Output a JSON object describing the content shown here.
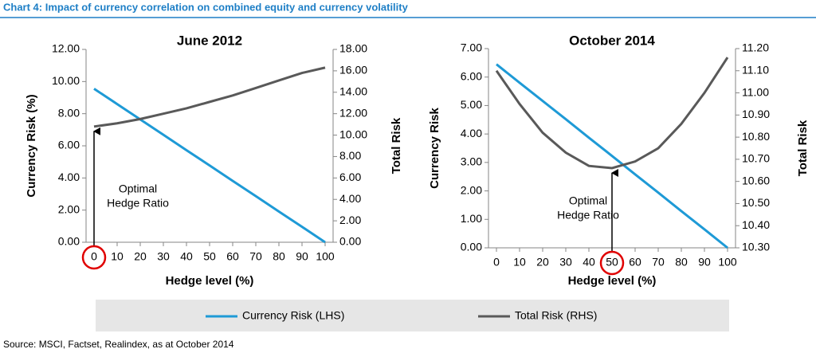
{
  "title": "Chart 4: Impact of currency correlation on combined equity and currency volatility",
  "source": "Source: MSCI, Factset, Realindex, as at October 2014",
  "chart_data": [
    {
      "type": "line",
      "title": "June 2012",
      "x_label": "Hedge level (%)",
      "y_label": "Currency Risk (%)",
      "y2_label": "Total Risk",
      "x": [
        0,
        10,
        20,
        30,
        40,
        50,
        60,
        70,
        80,
        90,
        100
      ],
      "xticks": [
        0,
        10,
        20,
        30,
        40,
        50,
        60,
        70,
        80,
        90,
        100
      ],
      "series": [
        {
          "name": "Currency Risk (LHS)",
          "color": "#1e9ad6",
          "values": [
            9.55,
            8.6,
            7.64,
            6.69,
            5.73,
            4.78,
            3.82,
            2.87,
            1.91,
            0.96,
            0
          ]
        },
        {
          "name": "Total Risk (RHS)",
          "color": "#595959",
          "axis": "y2",
          "values": [
            10.8,
            11.1,
            11.5,
            12.0,
            12.5,
            13.1,
            13.7,
            14.4,
            15.1,
            15.8,
            16.3
          ]
        }
      ],
      "ylim": [
        0,
        12
      ],
      "yticks": [
        {
          "value": 0,
          "label": "0.00"
        },
        {
          "value": 2,
          "label": "2.00"
        },
        {
          "value": 4,
          "label": "4.00"
        },
        {
          "value": 6,
          "label": "6.00"
        },
        {
          "value": 8,
          "label": "8.00"
        },
        {
          "value": 10,
          "label": "10.00"
        },
        {
          "value": 12,
          "label": "12.00"
        }
      ],
      "y2lim": [
        0,
        18
      ],
      "y2ticks": [
        {
          "value": 0,
          "label": "0.00"
        },
        {
          "value": 2,
          "label": "2.00"
        },
        {
          "value": 4,
          "label": "4.00"
        },
        {
          "value": 6,
          "label": "6.00"
        },
        {
          "value": 8,
          "label": "8.00"
        },
        {
          "value": 10,
          "label": "10.00"
        },
        {
          "value": 12,
          "label": "12.00"
        },
        {
          "value": 14,
          "label": "14.00"
        },
        {
          "value": 16,
          "label": "16.00"
        },
        {
          "value": 18,
          "label": "18.00"
        }
      ],
      "annotation": {
        "text": [
          "Optimal",
          "Hedge Ratio"
        ],
        "x": 0
      }
    },
    {
      "type": "line",
      "title": "October 2014",
      "x_label": "Hedge level (%)",
      "y_label": "Currency Risk",
      "y2_label": "Total Risk",
      "x": [
        0,
        10,
        20,
        30,
        40,
        50,
        60,
        70,
        80,
        90,
        100
      ],
      "xticks": [
        0,
        10,
        20,
        30,
        40,
        50,
        60,
        70,
        80,
        90,
        100
      ],
      "series": [
        {
          "color": "#1e9ad6",
          "values": [
            6.45,
            5.8,
            5.16,
            4.52,
            3.87,
            3.23,
            2.58,
            1.94,
            1.29,
            0.65,
            0
          ]
        },
        {
          "color": "#595959",
          "axis": "y2",
          "values": [
            11.1,
            10.95,
            10.82,
            10.73,
            10.67,
            10.66,
            10.69,
            10.75,
            10.86,
            11.0,
            11.16
          ]
        }
      ],
      "ylim": [
        0,
        7
      ],
      "yticks": [
        {
          "value": 0,
          "label": "0.00"
        },
        {
          "value": 1,
          "label": "1.00"
        },
        {
          "value": 2,
          "label": "2.00"
        },
        {
          "value": 3,
          "label": "3.00"
        },
        {
          "value": 4,
          "label": "4.00"
        },
        {
          "value": 5,
          "label": "5.00"
        },
        {
          "value": 6,
          "label": "6.00"
        },
        {
          "value": 7,
          "label": "7.00"
        }
      ],
      "y2lim": [
        10.3,
        11.2
      ],
      "y2ticks": [
        {
          "value": 10.3,
          "label": "10.30"
        },
        {
          "value": 10.4,
          "label": "10.40"
        },
        {
          "value": 10.5,
          "label": "10.50"
        },
        {
          "value": 10.6,
          "label": "10.60"
        },
        {
          "value": 10.7,
          "label": "10.70"
        },
        {
          "value": 10.8,
          "label": "10.80"
        },
        {
          "value": 10.9,
          "label": "10.90"
        },
        {
          "value": 11.0,
          "label": "11.00"
        },
        {
          "value": 11.1,
          "label": "11.10"
        },
        {
          "value": 11.2,
          "label": "11.20"
        }
      ],
      "annotation": {
        "text": [
          "Optimal",
          "Hedge Ratio"
        ],
        "x": 50
      }
    }
  ]
}
